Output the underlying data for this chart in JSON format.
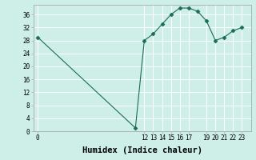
{
  "xlabel": "Humidex (Indice chaleur)",
  "x_values": [
    0,
    11,
    12,
    13,
    14,
    15,
    16,
    17,
    18,
    19,
    20,
    21,
    22,
    23
  ],
  "y_values": [
    29,
    1,
    28,
    30,
    33,
    36,
    38,
    38,
    37,
    34,
    28,
    29,
    31,
    32
  ],
  "xlim": [
    -0.5,
    24
  ],
  "ylim": [
    0,
    39
  ],
  "yticks": [
    0,
    4,
    8,
    12,
    16,
    20,
    24,
    28,
    32,
    36
  ],
  "xticks": [
    0,
    12,
    13,
    14,
    15,
    16,
    17,
    19,
    20,
    21,
    22,
    23
  ],
  "xtick_labels": [
    "0",
    "12",
    "13",
    "14",
    "15",
    "16",
    "17",
    "19",
    "20",
    "21",
    "22",
    "23"
  ],
  "line_color": "#1a6b5a",
  "marker": "D",
  "marker_size": 2.5,
  "bg_color": "#ceeee8",
  "grid_color": "#ffffff",
  "axis_color": "#aaaaaa",
  "font_family": "monospace",
  "tick_fontsize": 5.5,
  "xlabel_fontsize": 7.5
}
